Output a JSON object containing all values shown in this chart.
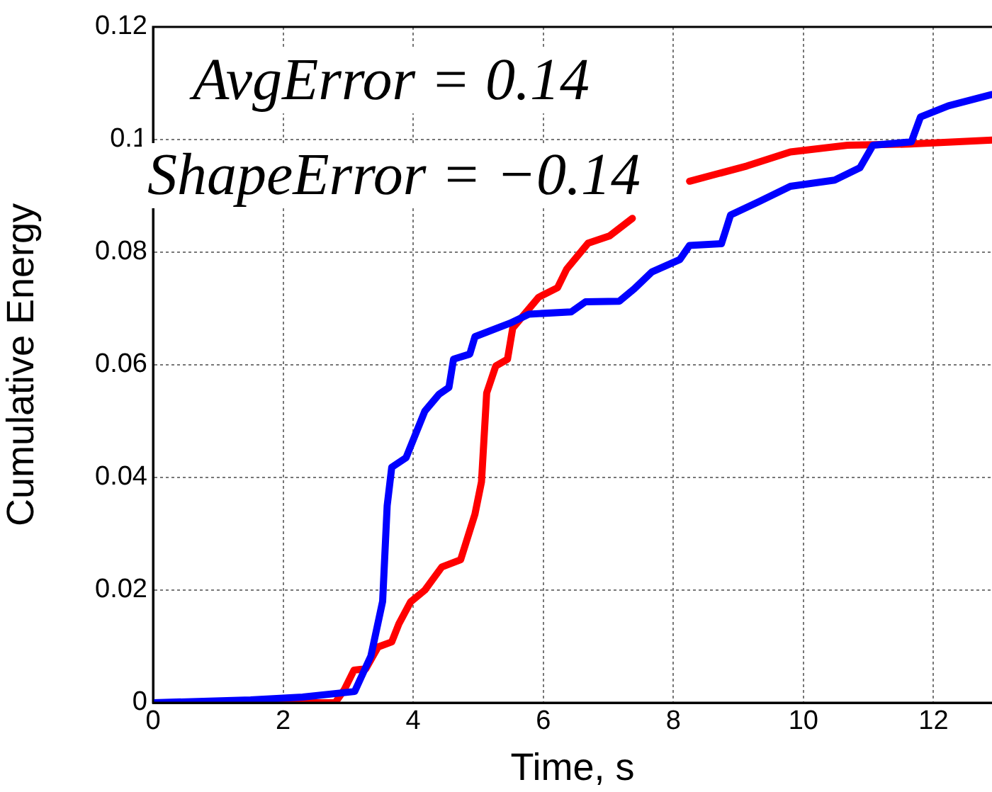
{
  "chart_data": {
    "type": "line",
    "xlabel": "Time, s",
    "ylabel": "Cumulative Energy",
    "annotations": [
      "AvgError = 0.14",
      "ShapeError = −0.14"
    ],
    "xlim": [
      0,
      12.9
    ],
    "xticks": [
      0,
      2,
      4,
      6,
      8,
      10,
      12
    ],
    "ylim": [
      0,
      0.12
    ],
    "yticks": [
      0,
      0.02,
      0.04,
      0.06,
      0.08,
      {
        "value": 0.1,
        "label": "0.1"
      },
      0.12
    ],
    "grid": true,
    "legend": false,
    "marker": "none",
    "line_style": "solid",
    "series": [
      {
        "color": "#0000ff",
        "x": [
          0,
          1.5,
          2.3,
          3.1,
          3.35,
          3.53,
          3.6,
          3.67,
          3.89,
          4.18,
          4.4,
          4.55,
          4.62,
          4.87,
          4.95,
          5.49,
          5.78,
          6.43,
          6.65,
          7.17,
          7.4,
          7.67,
          8.1,
          8.25,
          8.74,
          8.88,
          9.32,
          9.8,
          10.48,
          10.87,
          11.07,
          11.66,
          11.8,
          12.23,
          12.9
        ],
        "values": [
          0,
          0.0005,
          0.001,
          0.002,
          0.0083,
          0.018,
          0.035,
          0.0418,
          0.0435,
          0.0518,
          0.0548,
          0.056,
          0.061,
          0.0619,
          0.065,
          0.0674,
          0.069,
          0.0694,
          0.0712,
          0.0713,
          0.0735,
          0.0765,
          0.0787,
          0.0812,
          0.0815,
          0.0866,
          0.089,
          0.0917,
          0.0928,
          0.095,
          0.099,
          0.0996,
          0.104,
          0.106,
          0.108
        ]
      },
      {
        "color": "#ff0000",
        "x": [
          0,
          2.8,
          2.94,
          3.09,
          3.27,
          3.46,
          3.67,
          3.78,
          3.96,
          4.18,
          4.44,
          4.73,
          4.95,
          5.05,
          5.13,
          5.27,
          5.45,
          5.53,
          5.71,
          5.93,
          6.22,
          6.36,
          6.69,
          7.02,
          7.37,
          7.8,
          8.25,
          9.13,
          9.8,
          10.68,
          11.65,
          12.9
        ],
        "values": [
          0,
          0,
          0.0023,
          0.0058,
          0.006,
          0.0099,
          0.0108,
          0.014,
          0.0179,
          0.02,
          0.0241,
          0.0254,
          0.0335,
          0.0392,
          0.055,
          0.0598,
          0.061,
          0.0665,
          0.069,
          0.072,
          0.0737,
          0.077,
          0.0816,
          0.0829,
          0.086,
          null,
          0.0926,
          0.0953,
          0.0978,
          0.099,
          0.0992,
          0.0999
        ]
      }
    ]
  }
}
